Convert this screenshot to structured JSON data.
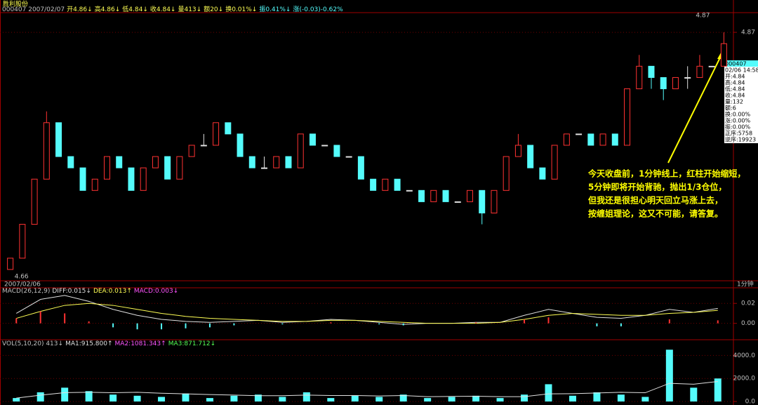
{
  "chart_data": [
    {
      "type": "candlestick",
      "title": "胜利股份",
      "header": [
        {
          "text": "000407 2007/02/07",
          "color": "#c0c0c0"
        },
        {
          "text": "开4.86↓",
          "color": "#ffff54"
        },
        {
          "text": "高4.86↓",
          "color": "#ffff54"
        },
        {
          "text": "低4.84↓",
          "color": "#ffff54"
        },
        {
          "text": "收4.84↓",
          "color": "#ffff54"
        },
        {
          "text": "量413↓",
          "color": "#ffff54"
        },
        {
          "text": "额20↓",
          "color": "#ffff54"
        },
        {
          "text": "换0.01%↓",
          "color": "#ffff54"
        },
        {
          "text": "振0.41%↓",
          "color": "#54fcfc"
        },
        {
          "text": "涨(-0.03)-0.62%",
          "color": "#54fcfc"
        }
      ],
      "x_label": "2007/02/06",
      "period_label": "1分钟",
      "high_label": "4.87",
      "low_label": "4.66",
      "open": [
        4.66,
        4.67,
        4.7,
        4.74,
        4.79,
        4.76,
        4.75,
        4.73,
        4.74,
        4.76,
        4.75,
        4.73,
        4.75,
        4.76,
        4.74,
        4.76,
        4.77,
        4.77,
        4.79,
        4.78,
        4.76,
        4.75,
        4.75,
        4.76,
        4.75,
        4.78,
        4.77,
        4.77,
        4.76,
        4.76,
        4.74,
        4.73,
        4.74,
        4.73,
        4.73,
        4.72,
        4.73,
        4.72,
        4.72,
        4.73,
        4.71,
        4.73,
        4.76,
        4.77,
        4.75,
        4.74,
        4.77,
        4.78,
        4.78,
        4.77,
        4.78,
        4.77,
        4.82,
        4.84,
        4.83,
        4.82,
        4.83,
        4.83,
        4.84,
        4.84
      ],
      "high": [
        4.67,
        4.7,
        4.74,
        4.8,
        4.79,
        4.76,
        4.75,
        4.74,
        4.76,
        4.76,
        4.75,
        4.75,
        4.76,
        4.76,
        4.76,
        4.77,
        4.78,
        4.79,
        4.79,
        4.78,
        4.76,
        4.76,
        4.76,
        4.76,
        4.78,
        4.78,
        4.77,
        4.77,
        4.76,
        4.76,
        4.74,
        4.74,
        4.74,
        4.73,
        4.73,
        4.73,
        4.73,
        4.72,
        4.73,
        4.73,
        4.73,
        4.76,
        4.78,
        4.77,
        4.75,
        4.77,
        4.78,
        4.78,
        4.78,
        4.78,
        4.78,
        4.82,
        4.85,
        4.84,
        4.83,
        4.83,
        4.84,
        4.85,
        4.84,
        4.87
      ],
      "low": [
        4.66,
        4.67,
        4.7,
        4.74,
        4.76,
        4.75,
        4.73,
        4.73,
        4.74,
        4.75,
        4.73,
        4.73,
        4.75,
        4.74,
        4.74,
        4.76,
        4.77,
        4.77,
        4.78,
        4.76,
        4.75,
        4.75,
        4.75,
        4.75,
        4.75,
        4.77,
        4.77,
        4.76,
        4.76,
        4.74,
        4.73,
        4.73,
        4.73,
        4.73,
        4.72,
        4.72,
        4.72,
        4.72,
        4.72,
        4.7,
        4.71,
        4.73,
        4.76,
        4.75,
        4.74,
        4.74,
        4.77,
        4.78,
        4.77,
        4.77,
        4.77,
        4.77,
        4.82,
        4.82,
        4.81,
        4.82,
        4.82,
        4.83,
        4.84,
        4.84
      ],
      "close": [
        4.67,
        4.7,
        4.74,
        4.79,
        4.76,
        4.75,
        4.73,
        4.74,
        4.76,
        4.75,
        4.73,
        4.75,
        4.76,
        4.74,
        4.76,
        4.77,
        4.77,
        4.79,
        4.78,
        4.76,
        4.75,
        4.75,
        4.76,
        4.75,
        4.78,
        4.77,
        4.77,
        4.76,
        4.76,
        4.74,
        4.73,
        4.74,
        4.73,
        4.73,
        4.72,
        4.73,
        4.72,
        4.72,
        4.73,
        4.71,
        4.73,
        4.76,
        4.77,
        4.75,
        4.74,
        4.77,
        4.78,
        4.78,
        4.77,
        4.78,
        4.77,
        4.82,
        4.84,
        4.83,
        4.82,
        4.83,
        4.83,
        4.84,
        4.84,
        4.86
      ],
      "up_color": "#ff3232",
      "down_color": "#54fcfc",
      "flat_color": "#e0e0e0",
      "ylim": [
        4.65,
        4.88
      ],
      "yticks": [
        4.87
      ]
    },
    {
      "type": "macd",
      "header": [
        {
          "text": "MACD(26,12,9)",
          "color": "#c0c0c0"
        },
        {
          "text": "DIFF:0.015↓",
          "color": "#e0e0e0"
        },
        {
          "text": "DEA:0.013↑",
          "color": "#ffff54"
        },
        {
          "text": "MACD:0.003↓",
          "color": "#ff54ff"
        }
      ],
      "series": [
        {
          "name": "DIFF",
          "color": "#e0e0e0",
          "values": [
            0.01,
            0.024,
            0.028,
            0.022,
            0.014,
            0.008,
            0.004,
            0.002,
            0.001,
            0.002,
            0.003,
            0.001,
            0.002,
            0.004,
            0.003,
            0.001,
            -0.001,
            0.0,
            0.0,
            0.001,
            0.001,
            0.008,
            0.014,
            0.01,
            0.006,
            0.005,
            0.008,
            0.014,
            0.011,
            0.015
          ]
        },
        {
          "name": "DEA",
          "color": "#ffff54",
          "values": [
            0.005,
            0.012,
            0.018,
            0.02,
            0.018,
            0.014,
            0.01,
            0.007,
            0.005,
            0.004,
            0.003,
            0.002,
            0.002,
            0.003,
            0.003,
            0.002,
            0.001,
            0.0,
            0.0,
            0.0,
            0.001,
            0.004,
            0.008,
            0.01,
            0.009,
            0.008,
            0.008,
            0.01,
            0.011,
            0.013
          ]
        },
        {
          "name": "MACD",
          "kind": "bar",
          "values": [
            0.005,
            0.012,
            0.01,
            0.002,
            -0.004,
            -0.006,
            -0.006,
            -0.005,
            -0.004,
            -0.002,
            0.0,
            -0.001,
            0.0,
            0.001,
            0.0,
            -0.001,
            -0.002,
            0.0,
            0.0,
            0.001,
            0.0,
            0.004,
            0.006,
            0.0,
            -0.003,
            -0.003,
            0.0,
            0.004,
            0.0,
            0.003
          ]
        }
      ],
      "up_color": "#ff3232",
      "down_color": "#54fcfc",
      "ylim": [
        -0.015,
        0.03
      ],
      "yticks": [
        {
          "value": 0.02,
          "label": "0.02"
        },
        {
          "value": 0,
          "label": "0.00"
        }
      ]
    },
    {
      "type": "volume",
      "header": [
        {
          "text": "VOL(5,10,20) 413↓",
          "color": "#c0c0c0"
        },
        {
          "text": "MA1:915.800↑",
          "color": "#e0e0e0"
        },
        {
          "text": "MA2:1081.343↑",
          "color": "#ff54ff"
        },
        {
          "text": "MA3:871.712↓",
          "color": "#54ff54"
        }
      ],
      "color": "#54fcfc",
      "values": [
        300,
        800,
        1200,
        900,
        600,
        500,
        400,
        700,
        300,
        500,
        600,
        400,
        800,
        300,
        500,
        400,
        600,
        300,
        400,
        500,
        300,
        600,
        1500,
        500,
        800,
        600,
        400,
        4500,
        1200,
        2000
      ],
      "series": [
        {
          "name": "MA1",
          "color": "#e0e0e0",
          "values": [
            300,
            550,
            770,
            800,
            760,
            800,
            720,
            660,
            600,
            560,
            500,
            500,
            560,
            520,
            520,
            480,
            520,
            420,
            440,
            460,
            420,
            420,
            660,
            680,
            740,
            800,
            760,
            1580,
            1500,
            1740
          ]
        }
      ],
      "ylim": [
        0,
        5000
      ],
      "yticks": [
        {
          "value": 4000,
          "label": "4000.0"
        },
        {
          "value": 2000,
          "label": "2000.0"
        },
        {
          "value": 0,
          "label": "0.0"
        }
      ]
    }
  ],
  "info_panel": [
    "000407",
    "02/06 14:58",
    "开:4.84",
    "高:4.84",
    "低:4.84",
    "收:4.84",
    "量:132",
    "额:6",
    "换:0.00%",
    "涨:0.00%",
    "振:0.00%",
    "正序:5758",
    "逆序:19923"
  ],
  "note": [
    "今天收盘前，1分钟线上，红柱开始缩短，",
    "5分钟即将开始背驰，抛出1/3仓位，",
    "但我还是很担心明天回立马涨上去，",
    "按缠姐理论，这又不可能，请答复。"
  ]
}
